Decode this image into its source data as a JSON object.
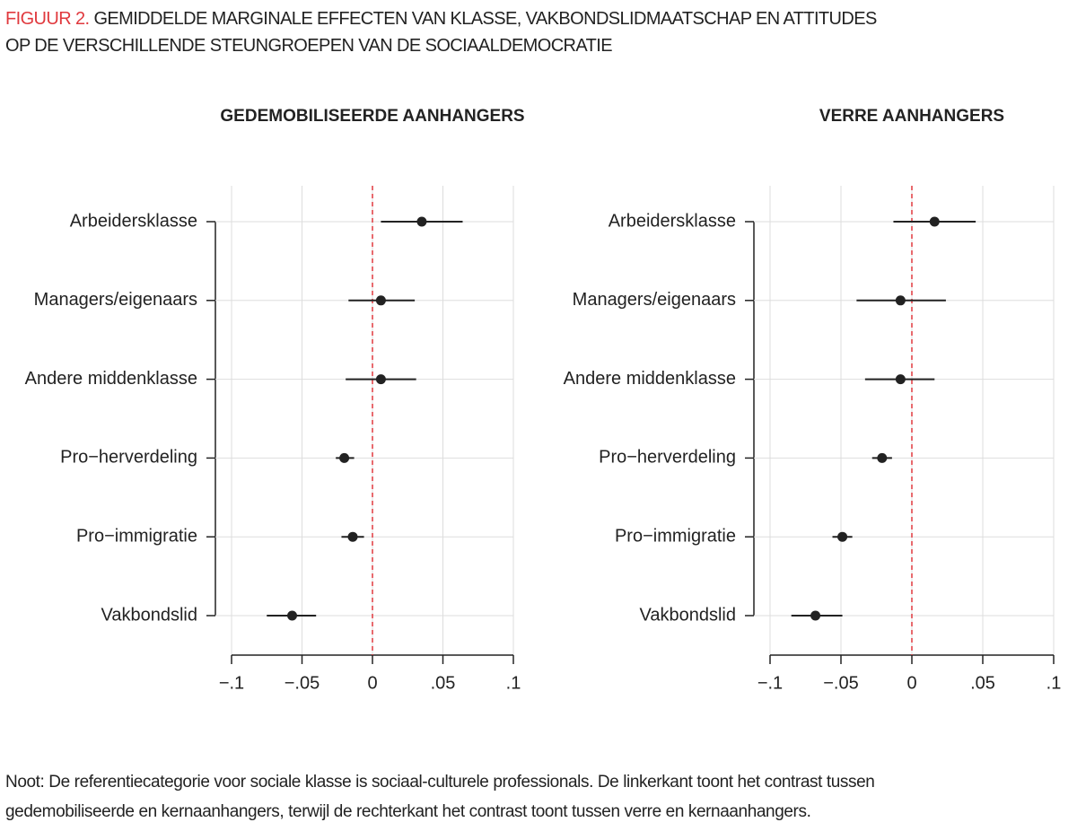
{
  "header": {
    "label": "FIGUUR 2.",
    "title_lines": [
      "GEMIDDELDE MARGINALE EFFECTEN VAN KLASSE, VAKBONDSLIDMAATSCHAP EN ATTITUDES",
      "OP DE VERSCHILLENDE STEUNGROEPEN VAN DE SOCIAALDEMOCRATIE"
    ]
  },
  "chart_data": [
    {
      "type": "coefplot",
      "title": "GEDEMOBILISEERDE AANHANGERS",
      "categories": [
        "Arbeidersklasse",
        "Managers/eigenaars",
        "Andere middenklasse",
        "Pro−herverdeling",
        "Pro−immigratie",
        "Vakbondslid"
      ],
      "values": [
        0.035,
        0.006,
        0.006,
        -0.02,
        -0.014,
        -0.057
      ],
      "ci_low": [
        0.006,
        -0.017,
        -0.019,
        -0.026,
        -0.022,
        -0.075
      ],
      "ci_high": [
        0.064,
        0.03,
        0.031,
        -0.013,
        -0.006,
        -0.04
      ],
      "color": "#222222",
      "reference_line": 0,
      "reference_color": "#e0393e",
      "xlim": [
        -0.1,
        0.1
      ],
      "xticks": [
        {
          "value": -0.1,
          "label": "−.1"
        },
        {
          "value": -0.05,
          "label": "−.05"
        },
        0,
        {
          "value": 0.05,
          "label": ".05"
        },
        {
          "value": 0.1,
          "label": ".1"
        }
      ],
      "grid": true
    },
    {
      "type": "coefplot",
      "title": "VERRE AANHANGERS",
      "categories": [
        "Arbeidersklasse",
        "Managers/eigenaars",
        "Andere middenklasse",
        "Pro−herverdeling",
        "Pro−immigratie",
        "Vakbondslid"
      ],
      "values": [
        0.016,
        -0.008,
        -0.008,
        -0.021,
        -0.049,
        -0.068
      ],
      "ci_low": [
        -0.013,
        -0.039,
        -0.033,
        -0.028,
        -0.056,
        -0.085
      ],
      "ci_high": [
        0.045,
        0.024,
        0.016,
        -0.014,
        -0.042,
        -0.049
      ],
      "color": "#222222",
      "reference_line": 0,
      "reference_color": "#e0393e",
      "xlim": [
        -0.1,
        0.1
      ],
      "xticks": [
        {
          "value": -0.1,
          "label": "−.1"
        },
        {
          "value": -0.05,
          "label": "−.05"
        },
        0,
        {
          "value": 0.05,
          "label": ".05"
        },
        {
          "value": 0.1,
          "label": ".1"
        }
      ],
      "grid": true
    }
  ],
  "note_lines": [
    "Noot: De referentiecategorie voor sociale klasse is sociaal-culturele professionals. De linkerkant toont het contrast tussen",
    "gedemobiliseerde en kernaanhangers, terwijl de rechterkant het contrast toont tussen verre en kernaanhangers."
  ]
}
